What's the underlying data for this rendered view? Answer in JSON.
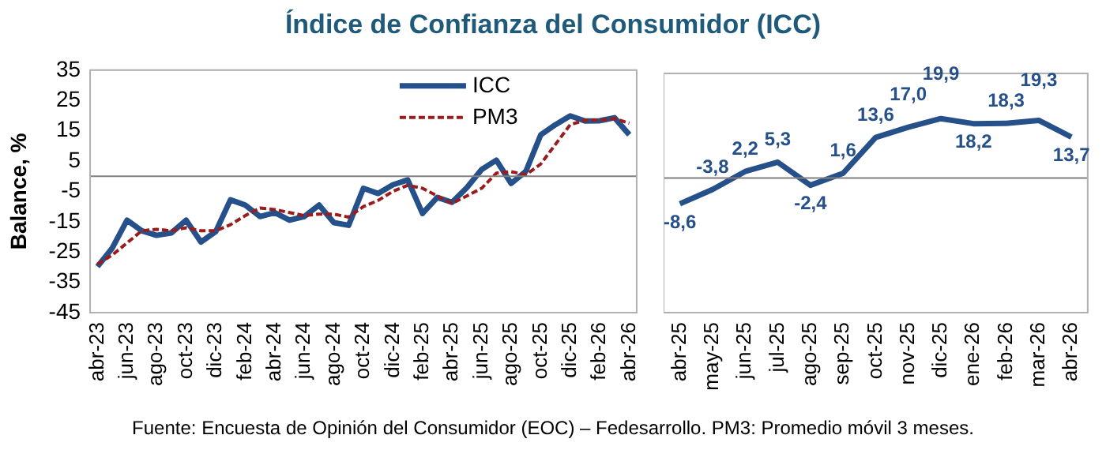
{
  "chart_data": [
    {
      "type": "line",
      "title": "Índice de Confianza del Consumidor (ICC)",
      "ylabel": "Balance, %",
      "annotations": [
        "Fuente: Encuesta de Opinión del Consumidor (EOC) – Fedesarrollo. PM3: Promedio móvil 3 meses."
      ],
      "categories": [
        "abr-23",
        null,
        "jun-23",
        null,
        "ago-23",
        null,
        "oct-23",
        null,
        "dic-23",
        null,
        "feb-24",
        null,
        "abr-24",
        null,
        "jun-24",
        null,
        "ago-24",
        null,
        "oct-24",
        null,
        "dic-24",
        null,
        "feb-25",
        null,
        "abr-25",
        null,
        "jun-25",
        null,
        "ago-25",
        null,
        "oct-25",
        null,
        "dic-25",
        null,
        "feb-26",
        null,
        "abr-26"
      ],
      "series": [
        {
          "name": "ICC",
          "color": "#26508a",
          "line_style": "solid",
          "values": [
            -29.8,
            -23.7,
            -14.5,
            -18,
            -19.5,
            -18.7,
            -14.5,
            -21.7,
            -18.3,
            -7.8,
            -9.5,
            -13.3,
            -12,
            -14.5,
            -13.3,
            -9.5,
            -15.3,
            -16.2,
            -4,
            -5.7,
            -2.8,
            -1.2,
            -12.3,
            -7,
            -8.6,
            -3.8,
            2.2,
            5.3,
            -2.4,
            1.6,
            13.6,
            17.0,
            19.9,
            18.2,
            18.3,
            19.3,
            13.7
          ]
        },
        {
          "name": "PM3",
          "color": "#9b1c1c",
          "line_style": "dashed",
          "values": [
            -29,
            -26,
            -22,
            -18,
            -17.5,
            -18,
            -17,
            -18,
            -18,
            -16,
            -13,
            -10.5,
            -11,
            -12,
            -13,
            -12.5,
            -12.5,
            -13.5,
            -10,
            -8,
            -5,
            -3,
            -4,
            -6.5,
            -9,
            -6.5,
            -4,
            1,
            1.5,
            0.5,
            4,
            10.5,
            17,
            18.5,
            18.5,
            19,
            17.5
          ]
        }
      ],
      "ylim": [
        -45,
        35
      ],
      "yticks": [
        -45,
        -35,
        -25,
        -15,
        -5,
        5,
        15,
        25,
        35
      ],
      "ref_lines": [
        {
          "axis": "y",
          "value": 0,
          "color": "#808080"
        }
      ],
      "grid": false,
      "legend": "top right",
      "marker": "none"
    },
    {
      "type": "line",
      "categories": [
        "abr-25",
        "may-25",
        "jun-25",
        "jul-25",
        "ago-25",
        "sep-25",
        "oct-25",
        "nov-25",
        "dic-25",
        "ene-26",
        "feb-26",
        "mar-26",
        "abr-26"
      ],
      "series": [
        {
          "color": "#26508a",
          "values": [
            -8.6,
            -3.8,
            2.2,
            5.3,
            -2.4,
            1.6,
            13.6,
            17.0,
            19.9,
            18.2,
            18.3,
            19.3,
            13.7
          ],
          "value_labels": [
            "-8,6",
            "-3,8",
            "2,2",
            "5,3",
            "-2,4",
            "1,6",
            "13,6",
            "17,0",
            "19,9",
            "18,2",
            "18,3",
            "19,3",
            "13,7"
          ]
        }
      ],
      "ylim": [
        -45,
        35
      ],
      "tick_labels": "x",
      "ref_lines": [
        {
          "axis": "y",
          "value": 0,
          "color": "#808080"
        }
      ],
      "grid": false,
      "legend": false,
      "marker": "none"
    }
  ]
}
